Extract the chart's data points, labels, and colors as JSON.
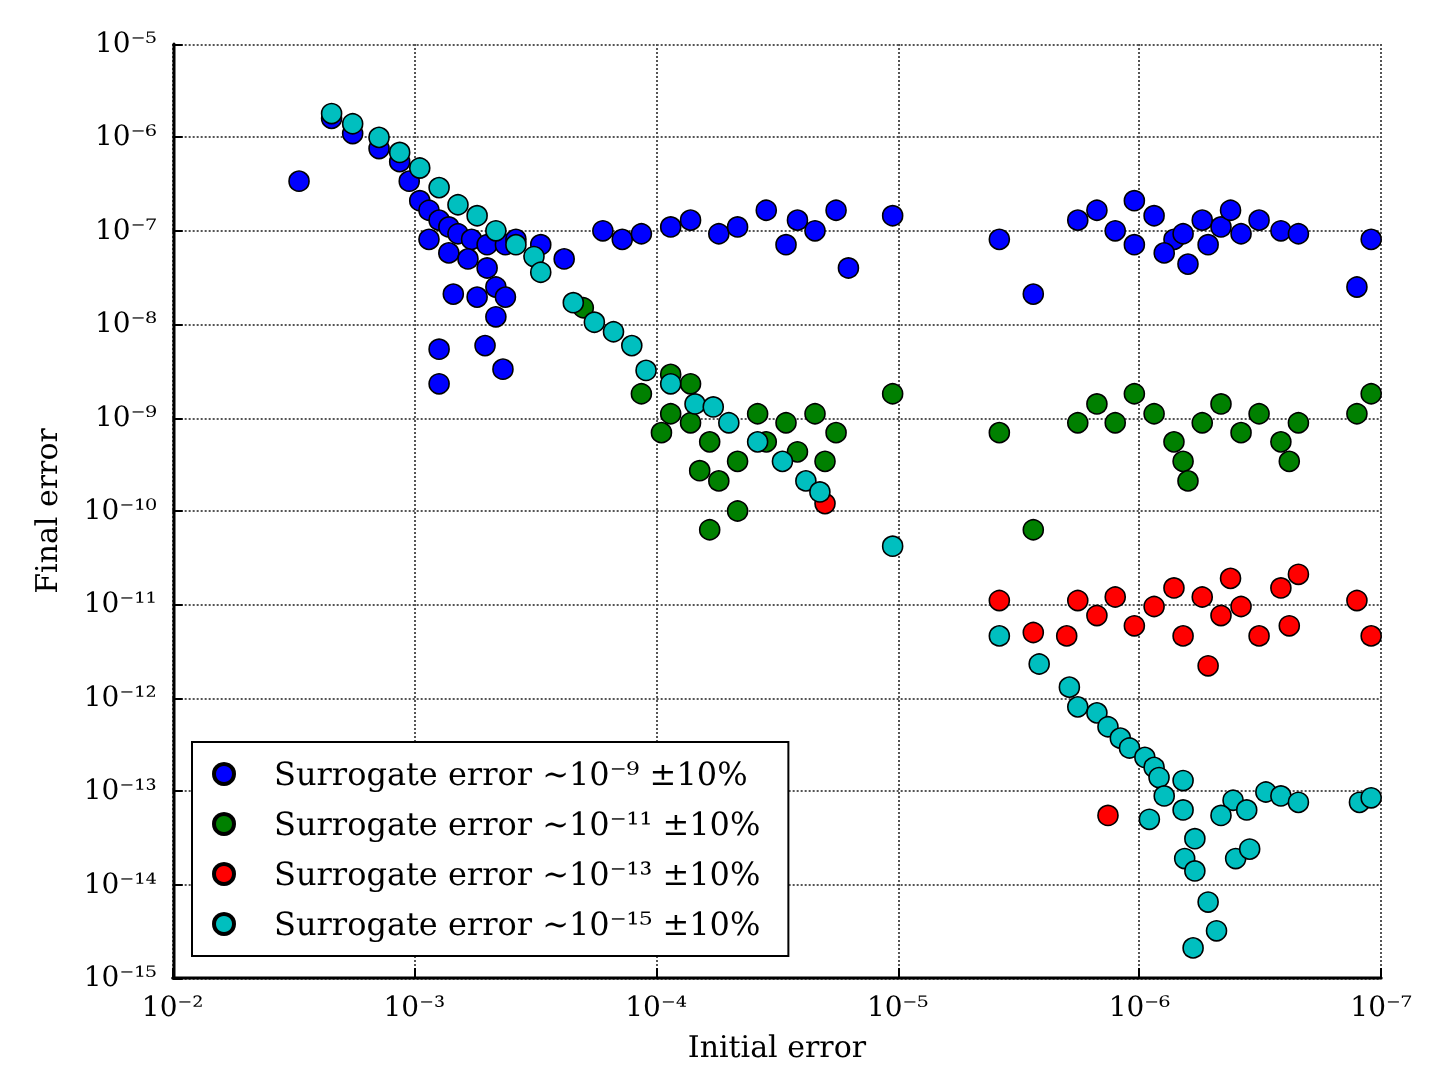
{
  "chart_data": {
    "type": "scatter",
    "xlabel": "Initial error",
    "ylabel": "Final error",
    "log": "xy",
    "grid": true,
    "legend": "bottom left",
    "marker": "circle",
    "xlim": [
      0.01,
      1e-07
    ],
    "xticks": [
      {
        "value": 0.01,
        "label": "10⁻²"
      },
      {
        "value": 0.001,
        "label": "10⁻³"
      },
      {
        "value": 0.0001,
        "label": "10⁻⁴"
      },
      {
        "value": 1e-05,
        "label": "10⁻⁵"
      },
      {
        "value": 1e-06,
        "label": "10⁻⁶"
      },
      {
        "value": 1e-07,
        "label": "10⁻⁷"
      }
    ],
    "ylim": [
      1e-15,
      1e-05
    ],
    "yticks": [
      {
        "value": 1e-15,
        "label": "10⁻¹⁵"
      },
      {
        "value": 1e-14,
        "label": "10⁻¹⁴"
      },
      {
        "value": 1e-13,
        "label": "10⁻¹³"
      },
      {
        "value": 1e-12,
        "label": "10⁻¹²"
      },
      {
        "value": 1e-11,
        "label": "10⁻¹¹"
      },
      {
        "value": 1e-10,
        "label": "10⁻¹⁰"
      },
      {
        "value": 1e-09,
        "label": "10⁻⁹"
      },
      {
        "value": 1e-08,
        "label": "10⁻⁸"
      },
      {
        "value": 1e-07,
        "label": "10⁻⁷"
      },
      {
        "value": 1e-06,
        "label": "10⁻⁶"
      },
      {
        "value": 1e-05,
        "label": "10⁻⁵"
      }
    ],
    "series": [
      {
        "name": "Surrogate error ∼10⁻⁹ ±10%",
        "color": "#0000ff",
        "x": [
          0.003,
          0.0022,
          0.0018,
          0.0014,
          0.00115,
          0.00105,
          0.00095,
          0.00087,
          0.00079,
          0.00072,
          0.00066,
          0.00058,
          0.0005,
          0.00042,
          0.00038,
          0.00087,
          0.00072,
          0.0006,
          0.0005,
          0.00046,
          0.00042,
          0.00046,
          0.00055,
          0.00069,
          0.00079,
          0.00079,
          0.00051,
          0.00043,
          0.0003,
          0.00024,
          0.000166,
          0.000138,
          0.000115,
          8.7e-05,
          7.2e-05,
          5.5e-05,
          4.6e-05,
          3.5e-05,
          2.9e-05,
          2.6e-05,
          2.2e-05,
          1.8e-05,
          1.6e-05,
          1.05e-05,
          3.8e-06,
          2.75e-06,
          1.8e-06,
          1.5e-06,
          1.26e-06,
          1.05e-06,
          8.7e-07,
          7.2e-07,
          6.6e-07,
          5.5e-07,
          4.6e-07,
          3.8e-07,
          3.2e-07,
          2.6e-07,
          2.2e-07,
          1.05e-06,
          7.9e-07,
          6.3e-07,
          5.2e-07,
          4.2e-07,
          1.26e-07,
          1.1e-07
        ],
        "values": [
          3.4e-07,
          1.6e-06,
          1.1e-06,
          7.6e-07,
          5.5e-07,
          3.4e-07,
          2.1e-07,
          1.66e-07,
          1.3e-07,
          1.1e-07,
          9.3e-08,
          8.1e-08,
          7.1e-08,
          7.1e-08,
          8.1e-08,
          8.1e-08,
          5.8e-08,
          5e-08,
          4e-08,
          2.5e-08,
          1.95e-08,
          1.2e-08,
          1.95e-08,
          2.1e-08,
          5.4e-09,
          2.3e-09,
          5.9e-09,
          3.3e-09,
          7.1e-08,
          5e-08,
          1e-07,
          8.1e-08,
          9.3e-08,
          1.1e-07,
          1.3e-07,
          9.3e-08,
          1.1e-07,
          1.66e-07,
          7.1e-08,
          1.3e-07,
          1e-07,
          1.66e-07,
          4e-08,
          1.45e-07,
          8.1e-08,
          2.1e-08,
          1.3e-07,
          1.66e-07,
          1e-07,
          2.1e-07,
          1.45e-07,
          8.1e-08,
          9.3e-08,
          1.3e-07,
          1.1e-07,
          9.3e-08,
          1.3e-07,
          1e-07,
          9.3e-08,
          7.1e-08,
          5.8e-08,
          4.4e-08,
          7.1e-08,
          1.66e-07,
          2.5e-08,
          8.1e-08
        ]
      },
      {
        "name": "Surrogate error ∼10⁻¹¹ ±10%",
        "color": "#008000",
        "x": [
          0.0002,
          8.7e-05,
          7.2e-05,
          0.000115,
          8.7e-05,
          9.5e-05,
          7.2e-05,
          6e-05,
          6.6e-05,
          5.5e-05,
          6e-05,
          4.6e-05,
          3.8e-05,
          2.9e-05,
          2.2e-05,
          1.8e-05,
          2e-05,
          3.5e-05,
          2.6e-05,
          4.6e-05,
          1.05e-05,
          3.8e-06,
          2.75e-06,
          1.8e-06,
          1.5e-06,
          1.26e-06,
          1.05e-06,
          8.7e-07,
          7.2e-07,
          6.6e-07,
          5.5e-07,
          4.6e-07,
          3.8e-07,
          3.2e-07,
          2.6e-07,
          2.4e-07,
          2.2e-07,
          6.3e-07,
          1.26e-07,
          1.1e-07
        ],
        "values": [
          1.5e-08,
          2.9e-09,
          2.3e-09,
          1.8e-09,
          1.1e-09,
          6.9e-10,
          8.8e-10,
          5.5e-10,
          2.7e-10,
          2.1e-10,
          6.3e-11,
          1e-10,
          1.1e-09,
          8.8e-10,
          1.1e-09,
          6.9e-10,
          3.4e-10,
          5.5e-10,
          4.3e-10,
          3.4e-10,
          1.8e-09,
          6.9e-10,
          6.3e-11,
          8.8e-10,
          1.4e-09,
          8.8e-10,
          1.8e-09,
          1.1e-09,
          5.5e-10,
          3.4e-10,
          8.8e-10,
          1.4e-09,
          6.9e-10,
          1.1e-09,
          5.5e-10,
          3.4e-10,
          8.8e-10,
          2.1e-10,
          1.1e-09,
          1.8e-09
        ]
      },
      {
        "name": "Surrogate error ∼10⁻¹³ ±10%",
        "color": "#ff0000",
        "x": [
          2e-05,
          3.8e-06,
          2.75e-06,
          1.8e-06,
          1.5e-06,
          1.26e-06,
          1.05e-06,
          8.7e-07,
          7.2e-07,
          6.6e-07,
          5.5e-07,
          5.2e-07,
          4.6e-07,
          4.2e-07,
          3.8e-07,
          3.2e-07,
          2.6e-07,
          2.4e-07,
          2.2e-07,
          1.26e-07,
          1.1e-07,
          1.35e-06,
          2e-06
        ],
        "values": [
          1.2e-10,
          1.1e-11,
          5e-12,
          1.1e-11,
          7.6e-12,
          1.2e-11,
          5.9e-12,
          9.5e-12,
          1.5e-11,
          4.6e-12,
          1.2e-11,
          2.2e-12,
          7.6e-12,
          1.9e-11,
          9.5e-12,
          4.6e-12,
          1.5e-11,
          5.9e-12,
          2.1e-11,
          1.1e-11,
          4.6e-12,
          5.5e-14,
          4.6e-12
        ]
      },
      {
        "name": "Surrogate error ∼10⁻¹⁵ ±10%",
        "color": "#00bfbf",
        "x": [
          0.0022,
          0.0018,
          0.0014,
          0.00115,
          0.00095,
          0.00079,
          0.00066,
          0.00055,
          0.00046,
          0.00038,
          0.00032,
          0.0003,
          0.00022,
          0.00018,
          0.00015,
          0.000126,
          0.00011,
          8.7e-05,
          6.9e-05,
          5.8e-05,
          5e-05,
          3.8e-05,
          3e-05,
          2.4e-05,
          2.1e-05,
          1.05e-05,
          3.8e-06,
          2.6e-06,
          1.95e-06,
          1.8e-06,
          1.5e-06,
          1.35e-06,
          1.2e-06,
          1.1e-06,
          9.5e-07,
          8.7e-07,
          8.3e-07,
          6.6e-07,
          7.9e-07,
          9.1e-07,
          6.6e-07,
          5.9e-07,
          6.5e-07,
          5.9e-07,
          5.2e-07,
          4.8e-07,
          6e-07,
          4.1e-07,
          4.6e-07,
          3.6e-07,
          4e-07,
          3.5e-07,
          3e-07,
          2.6e-07,
          2.2e-07,
          1.23e-07,
          1.1e-07
        ],
        "values": [
          1.8e-06,
          1.4e-06,
          1e-06,
          6.9e-07,
          4.7e-07,
          2.9e-07,
          1.9e-07,
          1.45e-07,
          1e-07,
          7.1e-08,
          5.3e-08,
          3.6e-08,
          1.7e-08,
          1.05e-08,
          8.3e-09,
          5.9e-09,
          3.2e-09,
          2.3e-09,
          1.4e-09,
          1.3e-09,
          8.8e-10,
          5.5e-10,
          3.4e-10,
          2.1e-10,
          1.6e-10,
          4.2e-11,
          4.6e-12,
          2.3e-12,
          1.3e-12,
          8e-13,
          6.9e-13,
          4.9e-13,
          3.7e-13,
          2.9e-13,
          2.3e-13,
          1.8e-13,
          1.4e-13,
          1.3e-13,
          8.9e-14,
          5e-14,
          6.3e-14,
          3.1e-14,
          1.9e-14,
          1.4e-14,
          6.5e-15,
          3.2e-15,
          2.1e-15,
          8e-14,
          5.5e-14,
          6.3e-14,
          1.9e-14,
          2.4e-14,
          9.8e-14,
          8.9e-14,
          7.6e-14,
          7.6e-14,
          8.5e-14
        ]
      }
    ]
  }
}
